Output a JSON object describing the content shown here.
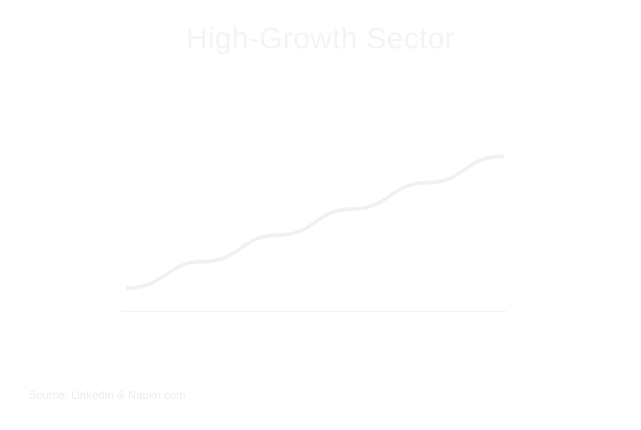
{
  "page": {
    "title": "High-Growth Sector",
    "subtitle": "",
    "source": "Source: LinkedIn & Naukri.com"
  },
  "colors": {
    "background": "#ffffff",
    "title": "#f4f4f4",
    "line": "#f1f1f1",
    "text": "#eeeeee",
    "axis": "#f3f3f3"
  },
  "chart_data": {
    "type": "line",
    "title": "High-Growth Sector",
    "xlabel": "",
    "ylabel": "",
    "x": [
      "",
      "",
      "",
      "",
      "",
      ""
    ],
    "series": [
      {
        "name": "",
        "values": [
          0,
          1,
          2,
          3,
          4,
          5
        ]
      }
    ],
    "data_labels": [
      "",
      "",
      "",
      "",
      "",
      ""
    ],
    "ylim": [
      0,
      5
    ],
    "grid": false,
    "legend": "none"
  }
}
